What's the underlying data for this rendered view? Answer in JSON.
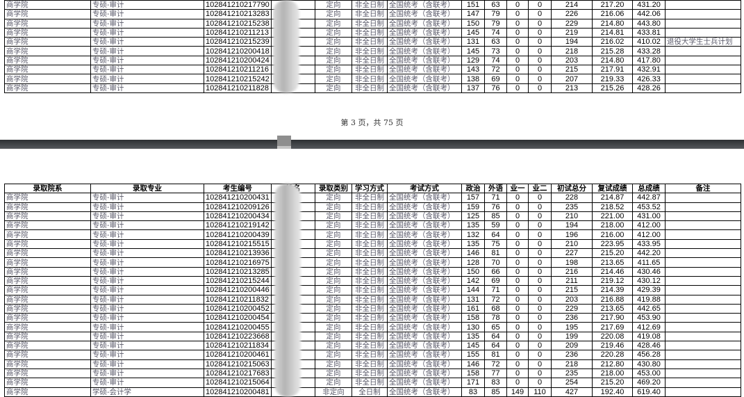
{
  "columns": [
    "录取院系",
    "录取专业",
    "考生编号",
    "姓名",
    "录取类别",
    "学习方式",
    "考试方式",
    "政治",
    "外语",
    "业一",
    "业二",
    "初试总分",
    "复试成绩",
    "总成绩",
    "备注"
  ],
  "page_indicator": "第 3 页，共 75 页",
  "page3_rows": [
    [
      "商学院",
      "专硕-审计",
      "102841210217790",
      "",
      "定向",
      "非全日制",
      "全国统考（含联考）",
      "151",
      "63",
      "0",
      "0",
      "214",
      "217.20",
      "431.20",
      ""
    ],
    [
      "商学院",
      "专硕-审计",
      "102841210213283",
      "",
      "定向",
      "非全日制",
      "全国统考（含联考）",
      "147",
      "79",
      "0",
      "0",
      "226",
      "216.06",
      "442.06",
      ""
    ],
    [
      "商学院",
      "专硕-审计",
      "102841210215238",
      "",
      "定向",
      "非全日制",
      "全国统考（含联考）",
      "150",
      "79",
      "0",
      "0",
      "229",
      "214.80",
      "443.80",
      ""
    ],
    [
      "商学院",
      "专硕-审计",
      "102841210211213",
      "",
      "定向",
      "非全日制",
      "全国统考（含联考）",
      "145",
      "74",
      "0",
      "0",
      "219",
      "214.81",
      "433.81",
      ""
    ],
    [
      "商学院",
      "专硕-审计",
      "102841210215239",
      "",
      "定向",
      "非全日制",
      "全国统考（含联考）",
      "131",
      "63",
      "0",
      "0",
      "194",
      "216.02",
      "410.02",
      "退役大学生士兵计划"
    ],
    [
      "商学院",
      "专硕-审计",
      "102841210200418",
      "",
      "定向",
      "非全日制",
      "全国统考（含联考）",
      "145",
      "73",
      "0",
      "0",
      "218",
      "215.28",
      "433.28",
      ""
    ],
    [
      "商学院",
      "专硕-审计",
      "102841210200424",
      "",
      "定向",
      "非全日制",
      "全国统考（含联考）",
      "129",
      "74",
      "0",
      "0",
      "203",
      "214.80",
      "417.80",
      ""
    ],
    [
      "商学院",
      "专硕-审计",
      "102841210211216",
      "",
      "定向",
      "非全日制",
      "全国统考（含联考）",
      "143",
      "72",
      "0",
      "0",
      "215",
      "217.91",
      "432.91",
      ""
    ],
    [
      "商学院",
      "专硕-审计",
      "102841210215242",
      "",
      "定向",
      "非全日制",
      "全国统考（含联考）",
      "138",
      "69",
      "0",
      "0",
      "207",
      "219.33",
      "426.33",
      ""
    ],
    [
      "商学院",
      "专硕-审计",
      "102841210211828",
      "",
      "定向",
      "非全日制",
      "全国统考（含联考）",
      "137",
      "76",
      "0",
      "0",
      "213",
      "215.26",
      "428.26",
      ""
    ]
  ],
  "page4_rows": [
    [
      "商学院",
      "专硕-审计",
      "102841210200431",
      "",
      "定向",
      "非全日制",
      "全国统考（含联考）",
      "157",
      "71",
      "0",
      "0",
      "228",
      "214.87",
      "442.87",
      ""
    ],
    [
      "商学院",
      "专硕-审计",
      "102841210209126",
      "",
      "定向",
      "非全日制",
      "全国统考（含联考）",
      "159",
      "76",
      "0",
      "0",
      "235",
      "218.52",
      "453.52",
      ""
    ],
    [
      "商学院",
      "专硕-审计",
      "102841210200434",
      "",
      "定向",
      "非全日制",
      "全国统考（含联考）",
      "125",
      "85",
      "0",
      "0",
      "210",
      "221.00",
      "431.00",
      ""
    ],
    [
      "商学院",
      "专硕-审计",
      "102841210219142",
      "",
      "定向",
      "非全日制",
      "全国统考（含联考）",
      "135",
      "59",
      "0",
      "0",
      "194",
      "218.00",
      "412.00",
      ""
    ],
    [
      "商学院",
      "专硕-审计",
      "102841210200439",
      "",
      "定向",
      "非全日制",
      "全国统考（含联考）",
      "132",
      "64",
      "0",
      "0",
      "196",
      "216.00",
      "412.00",
      ""
    ],
    [
      "商学院",
      "专硕-审计",
      "102841210215515",
      "",
      "定向",
      "非全日制",
      "全国统考（含联考）",
      "135",
      "75",
      "0",
      "0",
      "210",
      "223.95",
      "433.95",
      ""
    ],
    [
      "商学院",
      "专硕-审计",
      "102841210213936",
      "",
      "定向",
      "非全日制",
      "全国统考（含联考）",
      "146",
      "81",
      "0",
      "0",
      "227",
      "215.20",
      "442.20",
      ""
    ],
    [
      "商学院",
      "专硕-审计",
      "102841210216975",
      "",
      "定向",
      "非全日制",
      "全国统考（含联考）",
      "128",
      "70",
      "0",
      "0",
      "198",
      "213.65",
      "411.65",
      ""
    ],
    [
      "商学院",
      "专硕-审计",
      "102841210213285",
      "",
      "定向",
      "非全日制",
      "全国统考（含联考）",
      "150",
      "66",
      "0",
      "0",
      "216",
      "214.46",
      "430.46",
      ""
    ],
    [
      "商学院",
      "专硕-审计",
      "102841210215244",
      "",
      "定向",
      "非全日制",
      "全国统考（含联考）",
      "142",
      "69",
      "0",
      "0",
      "211",
      "219.12",
      "430.12",
      ""
    ],
    [
      "商学院",
      "专硕-审计",
      "102841210200446",
      "",
      "定向",
      "非全日制",
      "全国统考（含联考）",
      "144",
      "71",
      "0",
      "0",
      "215",
      "214.39",
      "429.39",
      ""
    ],
    [
      "商学院",
      "专硕-审计",
      "102841210211832",
      "",
      "定向",
      "非全日制",
      "全国统考（含联考）",
      "131",
      "72",
      "0",
      "0",
      "203",
      "216.88",
      "419.88",
      ""
    ],
    [
      "商学院",
      "专硕-审计",
      "102841210200452",
      "",
      "定向",
      "非全日制",
      "全国统考（含联考）",
      "161",
      "68",
      "0",
      "0",
      "229",
      "213.65",
      "442.65",
      ""
    ],
    [
      "商学院",
      "专硕-审计",
      "102841210200454",
      "",
      "定向",
      "非全日制",
      "全国统考（含联考）",
      "158",
      "78",
      "0",
      "0",
      "236",
      "217.90",
      "453.90",
      ""
    ],
    [
      "商学院",
      "专硕-审计",
      "102841210200455",
      "",
      "定向",
      "非全日制",
      "全国统考（含联考）",
      "130",
      "65",
      "0",
      "0",
      "195",
      "217.69",
      "412.69",
      ""
    ],
    [
      "商学院",
      "专硕-审计",
      "102841210223668",
      "",
      "定向",
      "非全日制",
      "全国统考（含联考）",
      "135",
      "64",
      "0",
      "0",
      "199",
      "220.08",
      "419.08",
      ""
    ],
    [
      "商学院",
      "专硕-审计",
      "102841210211834",
      "",
      "定向",
      "非全日制",
      "全国统考（含联考）",
      "145",
      "64",
      "0",
      "0",
      "209",
      "219.46",
      "428.46",
      ""
    ],
    [
      "商学院",
      "专硕-审计",
      "102841210200461",
      "",
      "定向",
      "非全日制",
      "全国统考（含联考）",
      "155",
      "81",
      "0",
      "0",
      "236",
      "220.28",
      "456.28",
      ""
    ],
    [
      "商学院",
      "专硕-审计",
      "102841210215063",
      "",
      "定向",
      "非全日制",
      "全国统考（含联考）",
      "146",
      "72",
      "0",
      "0",
      "218",
      "212.80",
      "430.80",
      ""
    ],
    [
      "商学院",
      "专硕-审计",
      "102841210217683",
      "",
      "定向",
      "非全日制",
      "全国统考（含联考）",
      "158",
      "77",
      "0",
      "0",
      "235",
      "218.00",
      "453.00",
      ""
    ],
    [
      "商学院",
      "专硕-审计",
      "102841210215064",
      "",
      "定向",
      "非全日制",
      "全国统考（含联考）",
      "171",
      "83",
      "0",
      "0",
      "254",
      "215.20",
      "469.20",
      ""
    ],
    [
      "商学院",
      "学硕-会计学",
      "102841210200481",
      "",
      "非定向",
      "全日制",
      "全国统考（含联考）",
      "83",
      "85",
      "149",
      "110",
      "427",
      "192.40",
      "619.40",
      ""
    ]
  ]
}
